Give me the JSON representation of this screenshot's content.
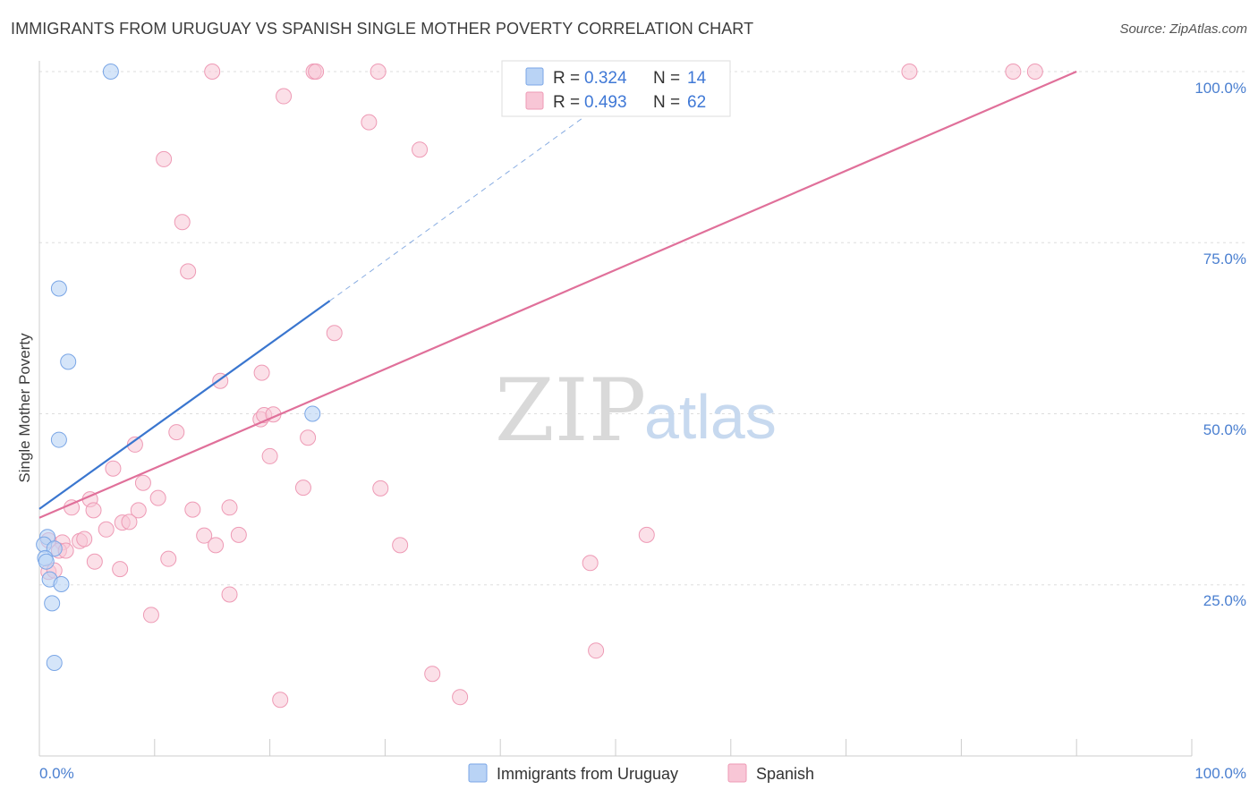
{
  "title": "IMMIGRANTS FROM URUGUAY VS SPANISH SINGLE MOTHER POVERTY CORRELATION CHART",
  "source": "Source: ZipAtlas.com",
  "watermark": {
    "zip": "ZIP",
    "atlas": "atlas"
  },
  "colors": {
    "uruguay_fill": "#b9d3f5",
    "uruguay_stroke": "#7aa6e6",
    "uruguay_line": "#3a76cf",
    "spanish_fill": "#f8c6d6",
    "spanish_stroke": "#ee9ab5",
    "spanish_line": "#e0709a",
    "tick_label": "#4a7fd0",
    "grid": "#dddddd"
  },
  "legend": {
    "rows": [
      {
        "r_label": "R =",
        "r_value": "0.324",
        "n_label": "N =",
        "n_value": "14"
      },
      {
        "r_label": "R =",
        "r_value": "0.493",
        "n_label": "N =",
        "n_value": "62"
      }
    ]
  },
  "bottom_legend": {
    "items": [
      "Immigrants from Uruguay",
      "Spanish"
    ]
  },
  "chart_data": {
    "type": "scatter",
    "xlabel": "",
    "ylabel": "Single Mother Poverty",
    "xlim": [
      0,
      100
    ],
    "ylim": [
      0,
      100
    ],
    "x_tick_labels": [
      "0.0%",
      "100.0%"
    ],
    "y_tick_labels": [
      "100.0%",
      "75.0%",
      "50.0%",
      "25.0%"
    ],
    "y_ticks": [
      100,
      75,
      50,
      25
    ],
    "grid": true,
    "series": [
      {
        "name": "Immigrants from Uruguay",
        "r": 0.324,
        "n": 14,
        "points": [
          [
            6.2,
            100
          ],
          [
            1.7,
            68.3
          ],
          [
            2.5,
            57.6
          ],
          [
            1.7,
            46.2
          ],
          [
            23.7,
            50.0
          ],
          [
            0.7,
            32.0
          ],
          [
            0.4,
            30.9
          ],
          [
            1.3,
            30.3
          ],
          [
            0.5,
            28.9
          ],
          [
            0.6,
            28.4
          ],
          [
            0.9,
            25.8
          ],
          [
            1.9,
            25.1
          ],
          [
            1.1,
            22.3
          ],
          [
            1.3,
            13.6
          ]
        ],
        "trend": {
          "x0": 0,
          "y0": 36.1,
          "x1": 25.2,
          "y1": 66.5,
          "dashed_to_x": 50,
          "dashed_to_y": 96.7
        }
      },
      {
        "name": "Spanish",
        "r": 0.493,
        "n": 62,
        "points": [
          [
            15.0,
            100
          ],
          [
            23.8,
            100
          ],
          [
            24.0,
            100
          ],
          [
            29.4,
            100
          ],
          [
            41.6,
            100
          ],
          [
            52.1,
            100
          ],
          [
            75.5,
            100
          ],
          [
            84.5,
            100
          ],
          [
            86.4,
            100
          ],
          [
            21.2,
            96.4
          ],
          [
            28.6,
            92.6
          ],
          [
            33.0,
            88.6
          ],
          [
            10.8,
            87.2
          ],
          [
            12.4,
            78.0
          ],
          [
            12.9,
            70.8
          ],
          [
            25.6,
            61.8
          ],
          [
            19.3,
            56.0
          ],
          [
            15.7,
            54.8
          ],
          [
            19.2,
            49.2
          ],
          [
            19.5,
            49.8
          ],
          [
            20.3,
            49.9
          ],
          [
            23.3,
            46.5
          ],
          [
            11.9,
            47.3
          ],
          [
            8.3,
            45.5
          ],
          [
            20.0,
            43.8
          ],
          [
            6.4,
            42.0
          ],
          [
            9.0,
            39.9
          ],
          [
            22.9,
            39.2
          ],
          [
            29.6,
            39.1
          ],
          [
            10.3,
            37.7
          ],
          [
            4.4,
            37.5
          ],
          [
            2.8,
            36.3
          ],
          [
            4.7,
            35.9
          ],
          [
            8.6,
            35.9
          ],
          [
            13.3,
            36.0
          ],
          [
            16.5,
            36.3
          ],
          [
            7.2,
            34.1
          ],
          [
            7.8,
            34.2
          ],
          [
            5.8,
            33.1
          ],
          [
            14.3,
            32.2
          ],
          [
            17.3,
            32.3
          ],
          [
            3.5,
            31.4
          ],
          [
            3.9,
            31.7
          ],
          [
            2.0,
            31.2
          ],
          [
            15.3,
            30.8
          ],
          [
            1.7,
            30.0
          ],
          [
            2.3,
            30.0
          ],
          [
            31.3,
            30.8
          ],
          [
            52.7,
            32.3
          ],
          [
            11.2,
            28.8
          ],
          [
            4.8,
            28.4
          ],
          [
            47.8,
            28.2
          ],
          [
            0.8,
            26.9
          ],
          [
            7.0,
            27.3
          ],
          [
            1.3,
            27.1
          ],
          [
            16.5,
            23.6
          ],
          [
            9.7,
            20.6
          ],
          [
            48.3,
            15.4
          ],
          [
            34.1,
            12.0
          ],
          [
            36.5,
            8.6
          ],
          [
            20.9,
            8.2
          ],
          [
            0.8,
            31.5
          ]
        ],
        "trend": {
          "x0": 0,
          "y0": 34.8,
          "x1": 90.0,
          "y1": 100
        }
      }
    ]
  }
}
